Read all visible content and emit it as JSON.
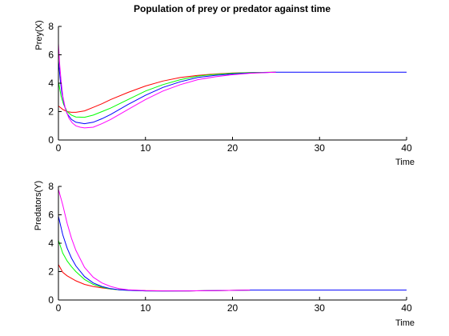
{
  "figure": {
    "title": "Population of prey or predator against time",
    "background": "#ffffff"
  },
  "chart_data": [
    {
      "type": "line",
      "title": "Population of prey or predator against time",
      "xlabel": "Time",
      "ylabel": "Prey(X)",
      "xlim": [
        0,
        40
      ],
      "ylim": [
        0,
        8
      ],
      "xticks": [
        "0",
        "10",
        "20",
        "30",
        "40"
      ],
      "yticks": [
        "0",
        "2",
        "4",
        "6",
        "8"
      ],
      "grid": false,
      "legend": "none",
      "series": [
        {
          "color": "#ff0000",
          "x": [
            0,
            0.5,
            1,
            1.5,
            2,
            3,
            4,
            5,
            6,
            8,
            10,
            12,
            14,
            16,
            18,
            20,
            22,
            25
          ],
          "y": [
            2.4,
            2.15,
            2.0,
            1.95,
            1.95,
            2.05,
            2.3,
            2.55,
            2.85,
            3.35,
            3.8,
            4.15,
            4.4,
            4.55,
            4.65,
            4.72,
            4.75,
            4.78
          ]
        },
        {
          "color": "#00ff00",
          "x": [
            0,
            0.3,
            0.6,
            1,
            1.5,
            2,
            3,
            4,
            5,
            6,
            8,
            10,
            12,
            14,
            16,
            18,
            20,
            22,
            25
          ],
          "y": [
            4.1,
            3.1,
            2.5,
            2.0,
            1.75,
            1.62,
            1.6,
            1.75,
            2.0,
            2.25,
            2.85,
            3.45,
            3.9,
            4.25,
            4.5,
            4.62,
            4.7,
            4.75,
            4.78
          ]
        },
        {
          "color": "#0000ff",
          "x": [
            0,
            0.2,
            0.4,
            0.7,
            1,
            1.5,
            2,
            3,
            4,
            5,
            6,
            8,
            10,
            12,
            14,
            16,
            18,
            20,
            22,
            25
          ],
          "y": [
            5.6,
            4.3,
            3.3,
            2.4,
            1.85,
            1.45,
            1.25,
            1.15,
            1.25,
            1.5,
            1.8,
            2.5,
            3.15,
            3.7,
            4.1,
            4.4,
            4.55,
            4.65,
            4.72,
            4.78
          ]
        },
        {
          "color": "#ff00ff",
          "x": [
            0,
            0.15,
            0.3,
            0.5,
            0.8,
            1.2,
            1.6,
            2,
            2.5,
            3,
            4,
            5,
            6,
            8,
            10,
            12,
            14,
            16,
            18,
            20,
            22,
            25
          ],
          "y": [
            6.8,
            5.3,
            4.2,
            3.1,
            2.2,
            1.55,
            1.2,
            1.0,
            0.9,
            0.85,
            0.9,
            1.15,
            1.45,
            2.15,
            2.85,
            3.45,
            3.9,
            4.25,
            4.45,
            4.6,
            4.7,
            4.78
          ]
        },
        {
          "color": "#0000ff",
          "x": [
            25,
            30,
            35,
            40
          ],
          "y": [
            4.78,
            4.78,
            4.78,
            4.78
          ]
        }
      ]
    },
    {
      "type": "line",
      "title": "",
      "xlabel": "Time",
      "ylabel": "Predators(Y)",
      "xlim": [
        0,
        40
      ],
      "ylim": [
        0,
        8
      ],
      "xticks": [
        "0",
        "10",
        "20",
        "30",
        "40"
      ],
      "yticks": [
        "0",
        "2",
        "4",
        "6",
        "8"
      ],
      "grid": false,
      "legend": "none",
      "series": [
        {
          "color": "#ff0000",
          "x": [
            0,
            0.5,
            1,
            2,
            3,
            4,
            5,
            6,
            7,
            8,
            10,
            12,
            15,
            18,
            22
          ],
          "y": [
            2.5,
            1.95,
            1.7,
            1.35,
            1.1,
            0.95,
            0.85,
            0.78,
            0.72,
            0.7,
            0.66,
            0.65,
            0.64,
            0.66,
            0.7
          ]
        },
        {
          "color": "#00ff00",
          "x": [
            0,
            0.5,
            1,
            1.5,
            2,
            3,
            4,
            5,
            6,
            7,
            8,
            10,
            12,
            15,
            18,
            22
          ],
          "y": [
            4.2,
            3.3,
            2.75,
            2.35,
            2.0,
            1.45,
            1.1,
            0.9,
            0.78,
            0.72,
            0.68,
            0.64,
            0.63,
            0.64,
            0.66,
            0.7
          ]
        },
        {
          "color": "#0000ff",
          "x": [
            0,
            0.5,
            1,
            1.5,
            2,
            3,
            4,
            5,
            6,
            7,
            8,
            10,
            12,
            15,
            18,
            22
          ],
          "y": [
            5.9,
            4.6,
            3.65,
            2.95,
            2.4,
            1.65,
            1.2,
            0.95,
            0.8,
            0.72,
            0.68,
            0.64,
            0.63,
            0.64,
            0.66,
            0.7
          ]
        },
        {
          "color": "#ff00ff",
          "x": [
            0,
            0.5,
            1,
            1.5,
            2,
            3,
            4,
            5,
            6,
            7,
            8,
            10,
            12,
            15,
            18,
            22
          ],
          "y": [
            7.8,
            6.7,
            5.4,
            4.35,
            3.5,
            2.3,
            1.6,
            1.2,
            0.95,
            0.8,
            0.72,
            0.66,
            0.64,
            0.64,
            0.66,
            0.7
          ]
        },
        {
          "color": "#0000ff",
          "x": [
            22,
            30,
            35,
            40
          ],
          "y": [
            0.7,
            0.7,
            0.7,
            0.7
          ]
        }
      ]
    }
  ]
}
